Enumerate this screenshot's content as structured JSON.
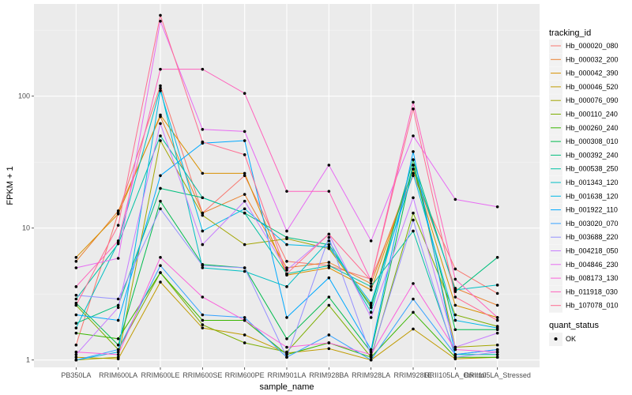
{
  "chart_data": {
    "type": "line",
    "xlabel": "sample_name",
    "ylabel": "FPKM + 1",
    "y_scale": "log10",
    "ylim": [
      0.88,
      500
    ],
    "y_ticks": [
      {
        "value": 1,
        "label": "1"
      },
      {
        "value": 10,
        "label": "10"
      },
      {
        "value": 100,
        "label": "100"
      }
    ],
    "grid": true,
    "background": "#ebebeb",
    "categories": [
      "PB350LA",
      "RRIM600LA",
      "RRIM600LE",
      "RRIM600SE",
      "RRIM600PE",
      "RRIM901LA",
      "RRIM928BA",
      "RRIM928LA",
      "RRIM928LE",
      "RRII105LA_Control",
      "RRII105LA_Stressed"
    ],
    "legend": {
      "title": "tracking_id",
      "position": "right"
    },
    "legend2": {
      "title": "quant_status",
      "entries": [
        "OK"
      ],
      "position": "right"
    },
    "series": [
      {
        "name": "Hb_000020_080",
        "color": "#F8766D",
        "values": [
          1.3,
          13.0,
          120,
          13,
          25,
          5.6,
          5.2,
          4.1,
          25,
          4.9,
          3.2
        ]
      },
      {
        "name": "Hb_000032_200",
        "color": "#EA8331",
        "values": [
          5.6,
          13.5,
          70,
          13,
          18,
          5.0,
          5.5,
          3.8,
          28,
          3.5,
          2.6
        ]
      },
      {
        "name": "Hb_000042_390",
        "color": "#D89000",
        "values": [
          6.0,
          12.8,
          72,
          26,
          26,
          4.4,
          5.0,
          3.4,
          28,
          2.6,
          2.1
        ]
      },
      {
        "name": "Hb_000046_520",
        "color": "#C09B00",
        "values": [
          1.05,
          1.02,
          3.9,
          1.75,
          1.55,
          1.13,
          1.22,
          1.0,
          1.72,
          1.02,
          1.05
        ]
      },
      {
        "name": "Hb_000076_090",
        "color": "#A3A500",
        "values": [
          1.0,
          1.05,
          46,
          12.5,
          7.5,
          8.3,
          7.0,
          2.6,
          33,
          1.25,
          1.3
        ]
      },
      {
        "name": "Hb_000110_240",
        "color": "#7CAE00",
        "values": [
          2.6,
          1.2,
          4.6,
          1.85,
          1.35,
          1.15,
          2.6,
          1.05,
          13,
          2.2,
          1.8
        ]
      },
      {
        "name": "Hb_000260_240",
        "color": "#39B600",
        "values": [
          1.6,
          1.45,
          4.6,
          2.0,
          2.0,
          1.1,
          1.35,
          1.05,
          2.3,
          1.05,
          1.05
        ]
      },
      {
        "name": "Hb_000308_010",
        "color": "#00BB4E",
        "values": [
          2.7,
          1.3,
          16,
          5.3,
          5.0,
          1.45,
          3.0,
          1.15,
          30,
          1.7,
          1.7
        ]
      },
      {
        "name": "Hb_000392_240",
        "color": "#00BF7D",
        "values": [
          1.9,
          2.6,
          20,
          17,
          13,
          8.5,
          7.5,
          2.5,
          33,
          3.3,
          6.0
        ]
      },
      {
        "name": "Hb_000538_250",
        "color": "#00C1A3",
        "values": [
          2.9,
          7.6,
          50,
          17,
          13,
          4.5,
          5.2,
          3.6,
          9.5,
          1.1,
          1.1
        ]
      },
      {
        "name": "Hb_001343_120",
        "color": "#00BFC4",
        "values": [
          1.75,
          7.8,
          115,
          5.0,
          4.7,
          3.6,
          8.0,
          2.3,
          30,
          3.4,
          3.7
        ]
      },
      {
        "name": "Hb_001638_120",
        "color": "#00B8E7",
        "values": [
          1.0,
          1.15,
          110,
          9.5,
          14,
          7.5,
          7.2,
          2.7,
          26,
          2.0,
          1.75
        ]
      },
      {
        "name": "Hb_001922_110",
        "color": "#00A9FF",
        "values": [
          2.2,
          2.0,
          25,
          44,
          46,
          2.1,
          4.2,
          1.2,
          38,
          1.1,
          1.2
        ]
      },
      {
        "name": "Hb_003020_070",
        "color": "#35A2FF",
        "values": [
          1.0,
          1.2,
          5.2,
          2.2,
          2.1,
          1.05,
          1.55,
          1.0,
          2.9,
          1.1,
          1.2
        ]
      },
      {
        "name": "Hb_003688_220",
        "color": "#9590FF",
        "values": [
          3.1,
          2.9,
          14,
          5.2,
          5.0,
          1.05,
          8.5,
          1.08,
          11.5,
          1.05,
          1.15
        ]
      },
      {
        "name": "Hb_004218_050",
        "color": "#C77CFF",
        "values": [
          1.1,
          2.5,
          62,
          7.5,
          16,
          4.8,
          9.0,
          2.1,
          17,
          1.25,
          1.6
        ]
      },
      {
        "name": "Hb_004846_230",
        "color": "#E76BF3",
        "values": [
          5.0,
          5.9,
          370,
          56,
          54,
          9.5,
          30,
          8.0,
          50,
          16.5,
          14.5
        ]
      },
      {
        "name": "Hb_008173_130",
        "color": "#FA62DB",
        "values": [
          1.15,
          1.1,
          6.0,
          3.0,
          2.0,
          1.25,
          1.35,
          1.1,
          3.8,
          1.2,
          1.15
        ]
      },
      {
        "name": "Hb_011918_030",
        "color": "#FF62BC",
        "values": [
          3.6,
          8.0,
          160,
          160,
          105,
          19,
          19,
          4.0,
          90,
          4.1,
          2.1
        ]
      },
      {
        "name": "Hb_107078_010",
        "color": "#FF6C91",
        "values": [
          2.6,
          10.5,
          410,
          45,
          36,
          4.5,
          9.0,
          4.0,
          80,
          3.0,
          2.0
        ]
      }
    ]
  }
}
